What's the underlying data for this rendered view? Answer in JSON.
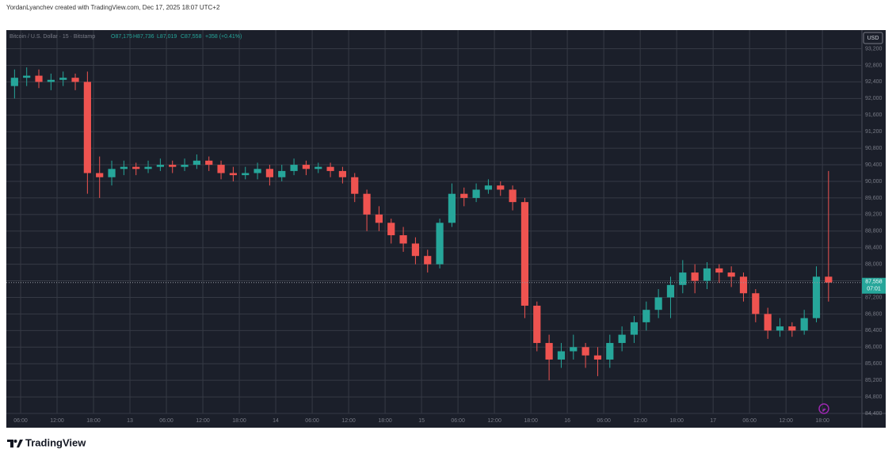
{
  "header": {
    "attribution": "YordanLyanchev created with TradingView.com, Dec 17, 2025 18:07 UTC+2"
  },
  "chart_data": {
    "type": "candlestick",
    "title": "Bitcoin / U.S. Dollar · 15 · Bitstamp",
    "ohlc_legend": {
      "open": "O87,175",
      "high": "H87,736",
      "low": "L87,019",
      "close": "C87,558",
      "change": "+358 (+0.41%)"
    },
    "currency": "USD",
    "x": [
      4,
      6,
      8,
      10,
      12,
      14,
      16,
      18,
      20,
      22,
      24,
      26,
      28,
      30,
      32,
      34,
      36,
      38,
      40,
      42,
      44,
      46,
      48,
      50,
      52,
      54,
      56,
      58,
      60,
      62,
      64,
      66,
      68,
      70,
      72,
      74,
      76,
      78,
      80,
      82,
      84,
      86,
      88,
      90,
      92,
      94,
      96,
      98,
      100,
      102,
      104,
      106,
      108,
      110,
      112,
      114,
      116,
      118,
      120,
      122,
      124,
      126,
      128,
      130,
      132,
      134,
      136,
      138
    ],
    "open": [
      92300,
      92500,
      92550,
      92400,
      92450,
      92500,
      92400,
      90200,
      90100,
      90300,
      90350,
      90300,
      90350,
      90400,
      90350,
      90400,
      90500,
      90400,
      90200,
      90150,
      90200,
      90300,
      90100,
      90250,
      90400,
      90300,
      90350,
      90250,
      90100,
      89700,
      89200,
      89000,
      88700,
      88500,
      88200,
      88000,
      89000,
      89700,
      89600,
      89800,
      89900,
      89800,
      89500,
      87000,
      86100,
      85700,
      85900,
      86000,
      85800,
      85700,
      86100,
      86300,
      86600,
      86900,
      87200,
      87500,
      87800,
      87600,
      87900,
      87800,
      87700,
      87300,
      86800,
      86400,
      86500,
      86400,
      86700,
      87700
    ],
    "high": [
      92700,
      92750,
      92700,
      92600,
      92650,
      92600,
      92650,
      90600,
      90500,
      90500,
      90450,
      90500,
      90550,
      90500,
      90550,
      90650,
      90600,
      90500,
      90350,
      90350,
      90450,
      90400,
      90400,
      90550,
      90500,
      90450,
      90450,
      90350,
      90200,
      89800,
      89400,
      89100,
      88900,
      88650,
      88350,
      89100,
      89950,
      89850,
      89950,
      90050,
      90000,
      89900,
      89600,
      87100,
      86300,
      86100,
      86300,
      86100,
      86000,
      86300,
      86500,
      86750,
      87100,
      87400,
      87700,
      88100,
      88000,
      88050,
      88000,
      87950,
      87800,
      87400,
      86950,
      86700,
      86600,
      86900,
      87950,
      90250
    ],
    "low": [
      92000,
      92300,
      92250,
      92200,
      92300,
      92200,
      89700,
      89600,
      89900,
      90150,
      90150,
      90200,
      90250,
      90200,
      90250,
      90300,
      90250,
      90050,
      90000,
      90050,
      90050,
      89900,
      90000,
      90150,
      90150,
      90200,
      90100,
      89950,
      89500,
      88800,
      88800,
      88500,
      88300,
      88000,
      87800,
      87900,
      88900,
      89400,
      89500,
      89700,
      89650,
      89300,
      86700,
      85900,
      85200,
      85500,
      85700,
      85500,
      85300,
      85500,
      85900,
      86100,
      86400,
      86700,
      86700,
      87300,
      87300,
      87400,
      87550,
      87450,
      87100,
      86600,
      86200,
      86250,
      86250,
      86300,
      86600,
      87100
    ],
    "close": [
      92500,
      92550,
      92400,
      92450,
      92500,
      92400,
      90200,
      90100,
      90300,
      90350,
      90300,
      90350,
      90400,
      90350,
      90400,
      90500,
      90400,
      90200,
      90150,
      90200,
      90300,
      90100,
      90250,
      90400,
      90300,
      90350,
      90250,
      90100,
      89700,
      89200,
      89000,
      88700,
      88500,
      88200,
      88000,
      89000,
      89700,
      89600,
      89800,
      89900,
      89800,
      89500,
      87000,
      86100,
      85700,
      85900,
      86000,
      85800,
      85700,
      86100,
      86300,
      86600,
      86900,
      87200,
      87500,
      87800,
      87600,
      87900,
      87800,
      87700,
      87300,
      86800,
      86400,
      86500,
      86400,
      86700,
      87700,
      87558
    ],
    "up_color": "#26a69a",
    "down_color": "#ef5350",
    "xlim": [
      3.65,
      144.5
    ],
    "xticks": [
      {
        "value": 6,
        "label": "06:00"
      },
      {
        "value": 12,
        "label": "12:00"
      },
      {
        "value": 18,
        "label": "18:00"
      },
      {
        "value": 24,
        "label": "13"
      },
      {
        "value": 30,
        "label": "06:00"
      },
      {
        "value": 36,
        "label": "12:00"
      },
      {
        "value": 42,
        "label": "18:00"
      },
      {
        "value": 48,
        "label": "14"
      },
      {
        "value": 54,
        "label": "06:00"
      },
      {
        "value": 60,
        "label": "12:00"
      },
      {
        "value": 66,
        "label": "18:00"
      },
      {
        "value": 72,
        "label": "15"
      },
      {
        "value": 78,
        "label": "06:00"
      },
      {
        "value": 84,
        "label": "12:00"
      },
      {
        "value": 90,
        "label": "18:00"
      },
      {
        "value": 96,
        "label": "16"
      },
      {
        "value": 102,
        "label": "06:00"
      },
      {
        "value": 108,
        "label": "12:00"
      },
      {
        "value": 114,
        "label": "18:00"
      },
      {
        "value": 120,
        "label": "17"
      },
      {
        "value": 126,
        "label": "06:00"
      },
      {
        "value": 132,
        "label": "12:00"
      },
      {
        "value": 138,
        "label": "18:00"
      }
    ],
    "ylim": [
      84400,
      93650
    ],
    "yticks": [
      {
        "value": 84400,
        "label": "84,400"
      },
      {
        "value": 84800,
        "label": "84,800"
      },
      {
        "value": 85200,
        "label": "85,200"
      },
      {
        "value": 85600,
        "label": "85,600"
      },
      {
        "value": 86000,
        "label": "86,000"
      },
      {
        "value": 86400,
        "label": "86,400"
      },
      {
        "value": 86800,
        "label": "86,800"
      },
      {
        "value": 87200,
        "label": "87,200"
      },
      {
        "value": 87600,
        "label": "87,600"
      },
      {
        "value": 88000,
        "label": "88,000"
      },
      {
        "value": 88400,
        "label": "88,400"
      },
      {
        "value": 88800,
        "label": "88,800"
      },
      {
        "value": 89200,
        "label": "89,200"
      },
      {
        "value": 89600,
        "label": "89,600"
      },
      {
        "value": 90000,
        "label": "90,000"
      },
      {
        "value": 90400,
        "label": "90,400"
      },
      {
        "value": 90800,
        "label": "90,800"
      },
      {
        "value": 91200,
        "label": "91,200"
      },
      {
        "value": 91600,
        "label": "91,600"
      },
      {
        "value": 92000,
        "label": "92,000"
      },
      {
        "value": 92400,
        "label": "92,400"
      },
      {
        "value": 92800,
        "label": "92,800"
      },
      {
        "value": 93200,
        "label": "93,200"
      }
    ],
    "grid": true,
    "last_price": {
      "value": 87558,
      "label": "87,558"
    },
    "countdown": "07:01"
  },
  "footer": {
    "brand": "TradingView"
  }
}
